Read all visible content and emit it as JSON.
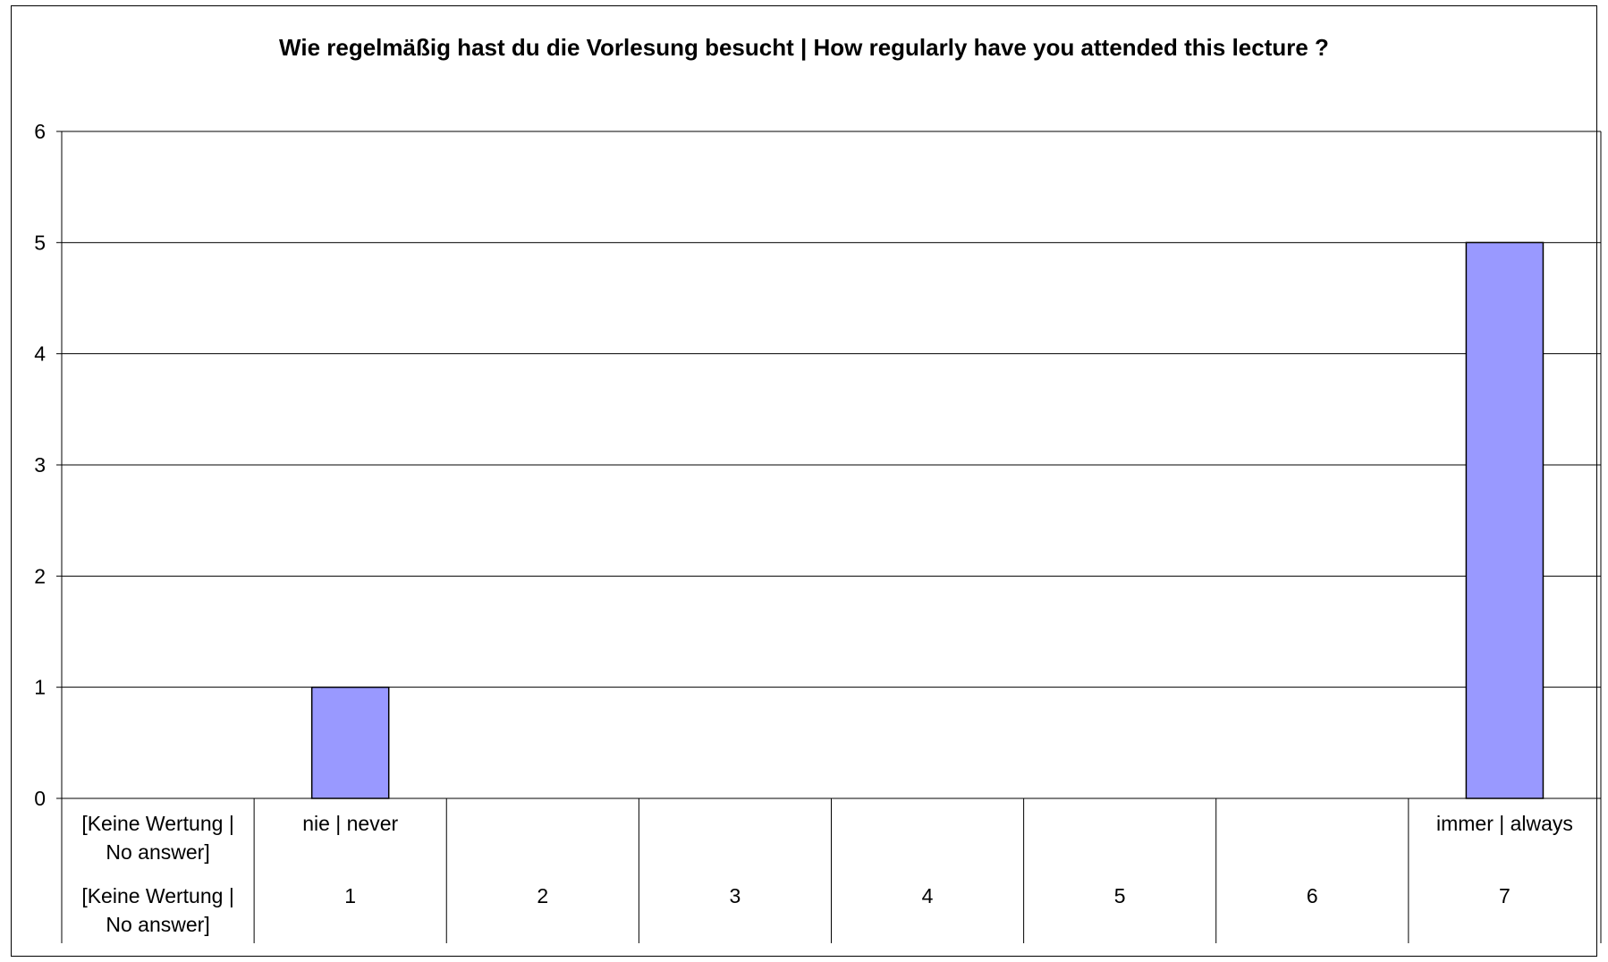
{
  "chart_data": {
    "type": "bar",
    "title": "Wie regelmäßig hast du die Vorlesung besucht | How regularly have you attended this lecture ?",
    "categories": [
      {
        "top": [
          "[Keine Wertung |",
          "No answer]"
        ],
        "bottom": [
          "[Keine Wertung |",
          "No answer]"
        ]
      },
      {
        "top": [
          "nie | never"
        ],
        "bottom": [
          "1"
        ]
      },
      {
        "top": [],
        "bottom": [
          "2"
        ]
      },
      {
        "top": [],
        "bottom": [
          "3"
        ]
      },
      {
        "top": [],
        "bottom": [
          "4"
        ]
      },
      {
        "top": [],
        "bottom": [
          "5"
        ]
      },
      {
        "top": [],
        "bottom": [
          "6"
        ]
      },
      {
        "top": [
          "immer | always"
        ],
        "bottom": [
          "7"
        ]
      }
    ],
    "values": [
      0,
      1,
      0,
      0,
      0,
      0,
      0,
      5
    ],
    "ylim": [
      0,
      6
    ],
    "yticks": [
      0,
      1,
      2,
      3,
      4,
      5,
      6
    ],
    "grid": true,
    "colors": {
      "bar_fill": "#9999ff",
      "bar_stroke": "#000000",
      "grid": "#000000"
    }
  }
}
